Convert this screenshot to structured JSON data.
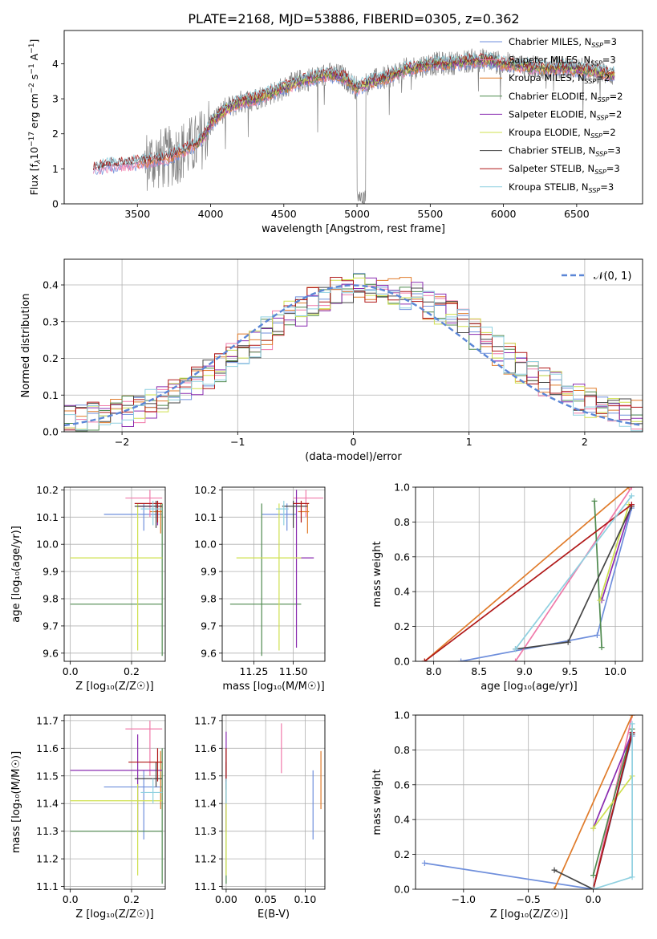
{
  "figure": {
    "title": "PLATE=2168, MJD=53886, FIBERID=0305, z=0.362"
  },
  "colors": {
    "Chabrier MILES": "#6f8fdc",
    "Salpeter MILES": "#f07aaa",
    "Kroupa MILES": "#e07b2a",
    "Chabrier ELODIE": "#4f8a4f",
    "Salpeter ELODIE": "#8a2cb0",
    "Kroupa ELODIE": "#cfe04f",
    "Chabrier STELIB": "#454545",
    "Salpeter STELIB": "#b01818",
    "Kroupa STELIB": "#8fd0e0",
    "data": "#808080",
    "gauss": "#5b86d6"
  },
  "chart_data": [
    {
      "type": "line",
      "panel": "spectrum",
      "xlabel": "wavelength [Angstrom, rest frame]",
      "ylabel_parts": [
        "Flux [f",
        "λ",
        "10",
        "−17",
        " erg cm",
        "−2",
        " s",
        "−1",
        " A",
        "−1",
        "]"
      ],
      "xlim": [
        3000,
        6950
      ],
      "ylim": [
        0,
        4.95
      ],
      "xticks": [
        3500,
        4000,
        4500,
        5000,
        5500,
        6000,
        6500
      ],
      "yticks": [
        0,
        1,
        2,
        3,
        4
      ],
      "grid": false,
      "legend_position": "top-right",
      "series": [
        {
          "name": "Chabrier MILES",
          "nssp": "3"
        },
        {
          "name": "Salpeter MILES",
          "nssp": "3"
        },
        {
          "name": "Kroupa MILES",
          "nssp": "2"
        },
        {
          "name": "Chabrier ELODIE",
          "nssp": "2"
        },
        {
          "name": "Salpeter ELODIE",
          "nssp": "2"
        },
        {
          "name": "Kroupa ELODIE",
          "nssp": "2"
        },
        {
          "name": "Chabrier STELIB",
          "nssp": "3"
        },
        {
          "name": "Salpeter STELIB",
          "nssp": "3"
        },
        {
          "name": "Kroupa STELIB",
          "nssp": "3"
        }
      ],
      "continuum": {
        "x": [
          3200,
          3300,
          3450,
          3600,
          3700,
          3800,
          3850,
          3900,
          3950,
          4000,
          4100,
          4200,
          4300,
          4400,
          4500,
          4600,
          4700,
          4800,
          4900,
          5000,
          5100,
          5200,
          5300,
          5400,
          5500,
          5600,
          5700,
          5800,
          5900,
          6000,
          6100,
          6200,
          6300,
          6400,
          6500,
          6600,
          6750
        ],
        "y": [
          1.0,
          1.1,
          1.15,
          1.25,
          1.3,
          1.5,
          1.6,
          1.7,
          1.9,
          2.3,
          2.7,
          2.9,
          3.0,
          3.15,
          3.3,
          3.5,
          3.6,
          3.7,
          3.65,
          3.3,
          3.5,
          3.6,
          3.8,
          3.9,
          4.0,
          4.0,
          4.05,
          4.1,
          4.1,
          4.0,
          3.95,
          3.9,
          3.85,
          3.9,
          3.85,
          3.8,
          3.7
        ]
      }
    },
    {
      "type": "line",
      "panel": "residual-histogram",
      "xlabel": "(data-model)/error",
      "ylabel": "Normed distribution",
      "xlim": [
        -2.5,
        2.5
      ],
      "ylim": [
        0,
        0.47
      ],
      "xticks": [
        -2,
        -1,
        0,
        1,
        2
      ],
      "yticks": [
        0.0,
        0.1,
        0.2,
        0.3,
        0.4
      ],
      "xtick_labels": [
        "−2",
        "−1",
        "0",
        "1",
        "2"
      ],
      "ytick_labels": [
        "0.0",
        "0.1",
        "0.2",
        "0.3",
        "0.4"
      ],
      "grid": true,
      "legend_position": "top-right",
      "legend_label": "𝒩(0, 1)",
      "bins": 50
    },
    {
      "type": "scatter",
      "panel": "age-vs-metallicity",
      "xlabel": "Z [log₁₀(Z/Z☉)]",
      "ylabel": "age  [log₁₀(age/yr)]",
      "xlim": [
        -0.02,
        0.31
      ],
      "ylim": [
        9.57,
        10.21
      ],
      "xticks": [
        0.0,
        0.2
      ],
      "yticks": [
        9.6,
        9.7,
        9.8,
        9.9,
        10.0,
        10.1,
        10.2
      ],
      "xtick_labels": [
        "0.0",
        "0.2"
      ],
      "ytick_labels": [
        "9.6",
        "9.7",
        "9.8",
        "9.9",
        "10.0",
        "10.1",
        "10.2"
      ],
      "grid": true,
      "points": [
        {
          "series": "Chabrier MILES",
          "x": 0.24,
          "y": 10.11,
          "xerr": [
            0.11,
            0.3
          ],
          "yerr": [
            10.05,
            10.15
          ]
        },
        {
          "series": "Salpeter MILES",
          "x": 0.26,
          "y": 10.17,
          "xerr": [
            0.18,
            0.3
          ],
          "yerr": [
            10.1,
            10.2
          ]
        },
        {
          "series": "Kroupa MILES",
          "x": 0.295,
          "y": 10.12,
          "xerr": [
            0.26,
            0.3
          ],
          "yerr": [
            10.04,
            10.15
          ]
        },
        {
          "series": "Chabrier ELODIE",
          "x": 0.3,
          "y": 9.78,
          "xerr": [
            0.0,
            0.3
          ],
          "yerr": [
            9.59,
            10.15
          ]
        },
        {
          "series": "Salpeter ELODIE",
          "x": 0.285,
          "y": 10.14,
          "xerr": [
            0.22,
            0.3
          ],
          "yerr": [
            10.07,
            10.16
          ]
        },
        {
          "series": "Kroupa ELODIE",
          "x": 0.22,
          "y": 9.95,
          "xerr": [
            0.0,
            0.3
          ],
          "yerr": [
            9.61,
            10.15
          ]
        },
        {
          "series": "Chabrier STELIB",
          "x": 0.28,
          "y": 10.14,
          "xerr": [
            0.21,
            0.3
          ],
          "yerr": [
            10.06,
            10.16
          ]
        },
        {
          "series": "Salpeter STELIB",
          "x": 0.285,
          "y": 10.15,
          "xerr": [
            0.21,
            0.3
          ],
          "yerr": [
            10.08,
            10.16
          ]
        },
        {
          "series": "Kroupa STELIB",
          "x": 0.27,
          "y": 10.13,
          "xerr": [
            0.23,
            0.3
          ],
          "yerr": [
            10.07,
            10.16
          ]
        }
      ]
    },
    {
      "type": "scatter",
      "panel": "age-vs-mass",
      "xlabel": "mass [log₁₀(M/M☉)]",
      "ylabel": "",
      "xlim": [
        11.05,
        11.7
      ],
      "ylim": [
        9.57,
        10.21
      ],
      "xticks": [
        11.25,
        11.5
      ],
      "yticks": [
        9.6,
        9.7,
        9.8,
        9.9,
        10.0,
        10.1,
        10.2
      ],
      "xtick_labels": [
        "11.25",
        "11.50"
      ],
      "ytick_labels": [
        "9.6",
        "9.7",
        "9.8",
        "9.9",
        "10.0",
        "10.1",
        "10.2"
      ],
      "grid": true,
      "points": [
        {
          "series": "Chabrier MILES",
          "x": 11.46,
          "y": 10.11,
          "xerr": [
            11.3,
            11.52
          ],
          "yerr": [
            10.05,
            10.15
          ]
        },
        {
          "series": "Salpeter MILES",
          "x": 11.58,
          "y": 10.17,
          "xerr": [
            11.5,
            11.69
          ],
          "yerr": [
            10.1,
            10.2
          ]
        },
        {
          "series": "Kroupa MILES",
          "x": 11.59,
          "y": 10.12,
          "xerr": [
            11.53,
            11.6
          ],
          "yerr": [
            10.04,
            10.15
          ]
        },
        {
          "series": "Chabrier ELODIE",
          "x": 11.3,
          "y": 9.78,
          "xerr": [
            11.1,
            11.55
          ],
          "yerr": [
            9.59,
            10.15
          ]
        },
        {
          "series": "Salpeter ELODIE",
          "x": 11.52,
          "y": 9.95,
          "xerr": [
            11.53,
            11.63
          ],
          "yerr": [
            9.62,
            10.2
          ]
        },
        {
          "series": "Kroupa ELODIE",
          "x": 11.41,
          "y": 9.95,
          "xerr": [
            11.14,
            11.55
          ],
          "yerr": [
            9.61,
            10.15
          ]
        },
        {
          "series": "Chabrier STELIB",
          "x": 11.5,
          "y": 10.14,
          "xerr": [
            11.43,
            11.59
          ],
          "yerr": [
            10.06,
            10.16
          ]
        },
        {
          "series": "Salpeter STELIB",
          "x": 11.55,
          "y": 10.15,
          "xerr": [
            11.5,
            11.6
          ],
          "yerr": [
            10.08,
            10.16
          ]
        },
        {
          "series": "Kroupa STELIB",
          "x": 11.44,
          "y": 10.13,
          "xerr": [
            11.39,
            11.47
          ],
          "yerr": [
            10.07,
            10.16
          ]
        }
      ]
    },
    {
      "type": "line",
      "panel": "cumulative-mass-vs-age",
      "xlabel": "age  [log₁₀(age/yr)]",
      "ylabel": "mass weight",
      "xlim": [
        7.8,
        10.3
      ],
      "ylim": [
        0,
        1.0
      ],
      "xticks": [
        8.0,
        8.5,
        9.0,
        9.5,
        10.0
      ],
      "yticks": [
        0.0,
        0.2,
        0.4,
        0.6,
        0.8,
        1.0
      ],
      "xtick_labels": [
        "8.0",
        "8.5",
        "9.0",
        "9.5",
        "10.0"
      ],
      "ytick_labels": [
        "0.0",
        "0.2",
        "0.4",
        "0.6",
        "0.8",
        "1.0"
      ],
      "grid": true,
      "series": [
        {
          "name": "Chabrier MILES",
          "x": [
            8.3,
            9.8,
            10.18
          ],
          "y": [
            0.0,
            0.15,
            0.88
          ]
        },
        {
          "name": "Salpeter MILES",
          "x": [
            8.9,
            10.18
          ],
          "y": [
            0.0,
            1.0
          ]
        },
        {
          "name": "Kroupa MILES",
          "x": [
            7.9,
            10.15
          ],
          "y": [
            0.0,
            1.0
          ]
        },
        {
          "name": "Chabrier ELODIE",
          "x": [
            9.77,
            9.85
          ],
          "y": [
            0.92,
            0.08
          ]
        },
        {
          "name": "Salpeter ELODIE",
          "x": [
            9.85,
            10.18
          ],
          "y": [
            0.35,
            0.9
          ]
        },
        {
          "name": "Kroupa ELODIE",
          "x": [
            9.83,
            10.15
          ],
          "y": [
            0.35,
            0.9
          ]
        },
        {
          "name": "Chabrier STELIB",
          "x": [
            8.9,
            9.48,
            10.18
          ],
          "y": [
            0.07,
            0.11,
            0.89
          ]
        },
        {
          "name": "Salpeter STELIB",
          "x": [
            7.9,
            10.18
          ],
          "y": [
            0.0,
            0.9
          ]
        },
        {
          "name": "Kroupa STELIB",
          "x": [
            8.9,
            10.18
          ],
          "y": [
            0.07,
            0.95
          ]
        }
      ]
    },
    {
      "type": "scatter",
      "panel": "mass-vs-metallicity",
      "xlabel": "Z [log₁₀(Z/Z☉)]",
      "ylabel": "mass [log₁₀(M/M☉)]",
      "xlim": [
        -0.02,
        0.31
      ],
      "ylim": [
        11.09,
        11.72
      ],
      "xticks": [
        0.0,
        0.2
      ],
      "yticks": [
        11.1,
        11.2,
        11.3,
        11.4,
        11.5,
        11.6,
        11.7
      ],
      "xtick_labels": [
        "0.0",
        "0.2"
      ],
      "ytick_labels": [
        "11.1",
        "11.2",
        "11.3",
        "11.4",
        "11.5",
        "11.6",
        "11.7"
      ],
      "grid": true,
      "points": [
        {
          "series": "Chabrier MILES",
          "x": 0.24,
          "y": 11.46,
          "xerr": [
            0.11,
            0.3
          ],
          "yerr": [
            11.27,
            11.52
          ]
        },
        {
          "series": "Salpeter MILES",
          "x": 0.26,
          "y": 11.67,
          "xerr": [
            0.18,
            0.3
          ],
          "yerr": [
            11.5,
            11.7
          ]
        },
        {
          "series": "Kroupa MILES",
          "x": 0.295,
          "y": 11.55,
          "xerr": [
            0.26,
            0.3
          ],
          "yerr": [
            11.38,
            11.59
          ]
        },
        {
          "series": "Chabrier ELODIE",
          "x": 0.3,
          "y": 11.3,
          "xerr": [
            0.0,
            0.3
          ],
          "yerr": [
            11.11,
            11.6
          ]
        },
        {
          "series": "Salpeter ELODIE",
          "x": 0.22,
          "y": 11.52,
          "xerr": [
            0.0,
            0.3
          ],
          "yerr": [
            11.3,
            11.65
          ]
        },
        {
          "series": "Kroupa ELODIE",
          "x": 0.22,
          "y": 11.41,
          "xerr": [
            0.0,
            0.3
          ],
          "yerr": [
            11.14,
            11.47
          ]
        },
        {
          "series": "Chabrier STELIB",
          "x": 0.28,
          "y": 11.49,
          "xerr": [
            0.21,
            0.3
          ],
          "yerr": [
            11.46,
            11.55
          ]
        },
        {
          "series": "Salpeter STELIB",
          "x": 0.285,
          "y": 11.55,
          "xerr": [
            0.19,
            0.3
          ],
          "yerr": [
            11.48,
            11.6
          ]
        },
        {
          "series": "Kroupa STELIB",
          "x": 0.27,
          "y": 11.44,
          "xerr": [
            0.23,
            0.3
          ],
          "yerr": [
            11.4,
            11.49
          ]
        }
      ]
    },
    {
      "type": "scatter",
      "panel": "mass-vs-extinction",
      "xlabel": "E(B-V)",
      "ylabel": "",
      "xlim": [
        -0.005,
        0.125
      ],
      "ylim": [
        11.09,
        11.72
      ],
      "xticks": [
        0.0,
        0.05,
        0.1
      ],
      "yticks": [
        11.1,
        11.2,
        11.3,
        11.4,
        11.5,
        11.6,
        11.7
      ],
      "xtick_labels": [
        "0.00",
        "0.05",
        "0.10"
      ],
      "ytick_labels": [
        "11.1",
        "11.2",
        "11.3",
        "11.4",
        "11.5",
        "11.6",
        "11.7"
      ],
      "grid": true,
      "points": [
        {
          "series": "Chabrier MILES",
          "x": 0.11,
          "y": 11.4,
          "yerr": [
            11.27,
            11.52
          ]
        },
        {
          "series": "Salpeter MILES",
          "x": 0.07,
          "y": 11.6,
          "yerr": [
            11.51,
            11.69
          ]
        },
        {
          "series": "Kroupa MILES",
          "x": 0.12,
          "y": 11.49,
          "yerr": [
            11.38,
            11.59
          ]
        },
        {
          "series": "Chabrier ELODIE",
          "x": 0.0,
          "y": 11.3,
          "yerr": [
            11.11,
            11.6
          ]
        },
        {
          "series": "Salpeter ELODIE",
          "x": 0.0,
          "y": 11.52,
          "yerr": [
            11.3,
            11.66
          ]
        },
        {
          "series": "Kroupa ELODIE",
          "x": 0.0,
          "y": 11.41,
          "yerr": [
            11.14,
            11.47
          ]
        },
        {
          "series": "Chabrier STELIB",
          "x": 0.0,
          "y": 11.49,
          "yerr": [
            11.45,
            11.55
          ]
        },
        {
          "series": "Salpeter STELIB",
          "x": 0.0,
          "y": 11.55,
          "yerr": [
            11.48,
            11.6
          ]
        },
        {
          "series": "Kroupa STELIB",
          "x": 0.0,
          "y": 11.44,
          "yerr": [
            11.4,
            11.49
          ]
        }
      ]
    },
    {
      "type": "line",
      "panel": "cumulative-mass-vs-metallicity",
      "xlabel": "Z [log₁₀(Z/Z☉)]",
      "ylabel": "mass weight",
      "xlim": [
        -1.37,
        0.38
      ],
      "ylim": [
        0,
        1.0
      ],
      "xticks": [
        -1.0,
        -0.5,
        0.0
      ],
      "yticks": [
        0.0,
        0.2,
        0.4,
        0.6,
        0.8,
        1.0
      ],
      "xtick_labels": [
        "−1.0",
        "−0.5",
        "0.0"
      ],
      "ytick_labels": [
        "0.0",
        "0.2",
        "0.4",
        "0.6",
        "0.8",
        "1.0"
      ],
      "grid": true,
      "series": [
        {
          "name": "Chabrier MILES",
          "x": [
            -1.3,
            0.0,
            0.3
          ],
          "y": [
            0.15,
            0.0,
            0.88
          ]
        },
        {
          "name": "Salpeter MILES",
          "x": [
            0.0,
            0.3
          ],
          "y": [
            0.0,
            1.0
          ]
        },
        {
          "name": "Kroupa MILES",
          "x": [
            -0.3,
            0.3
          ],
          "y": [
            0.0,
            1.0
          ]
        },
        {
          "name": "Chabrier ELODIE",
          "x": [
            0.0,
            0.3
          ],
          "y": [
            0.08,
            0.92
          ]
        },
        {
          "name": "Salpeter ELODIE",
          "x": [
            0.0,
            0.3
          ],
          "y": [
            0.35,
            0.9
          ]
        },
        {
          "name": "Kroupa ELODIE",
          "x": [
            0.0,
            0.3
          ],
          "y": [
            0.35,
            0.65
          ]
        },
        {
          "name": "Chabrier STELIB",
          "x": [
            -0.3,
            0.0,
            0.3
          ],
          "y": [
            0.11,
            0.0,
            0.89
          ]
        },
        {
          "name": "Salpeter STELIB",
          "x": [
            0.0,
            0.3
          ],
          "y": [
            0.0,
            0.9
          ]
        },
        {
          "name": "Kroupa STELIB",
          "x": [
            0.0,
            0.3,
            0.3
          ],
          "y": [
            0.0,
            0.07,
            0.95
          ]
        }
      ]
    }
  ]
}
